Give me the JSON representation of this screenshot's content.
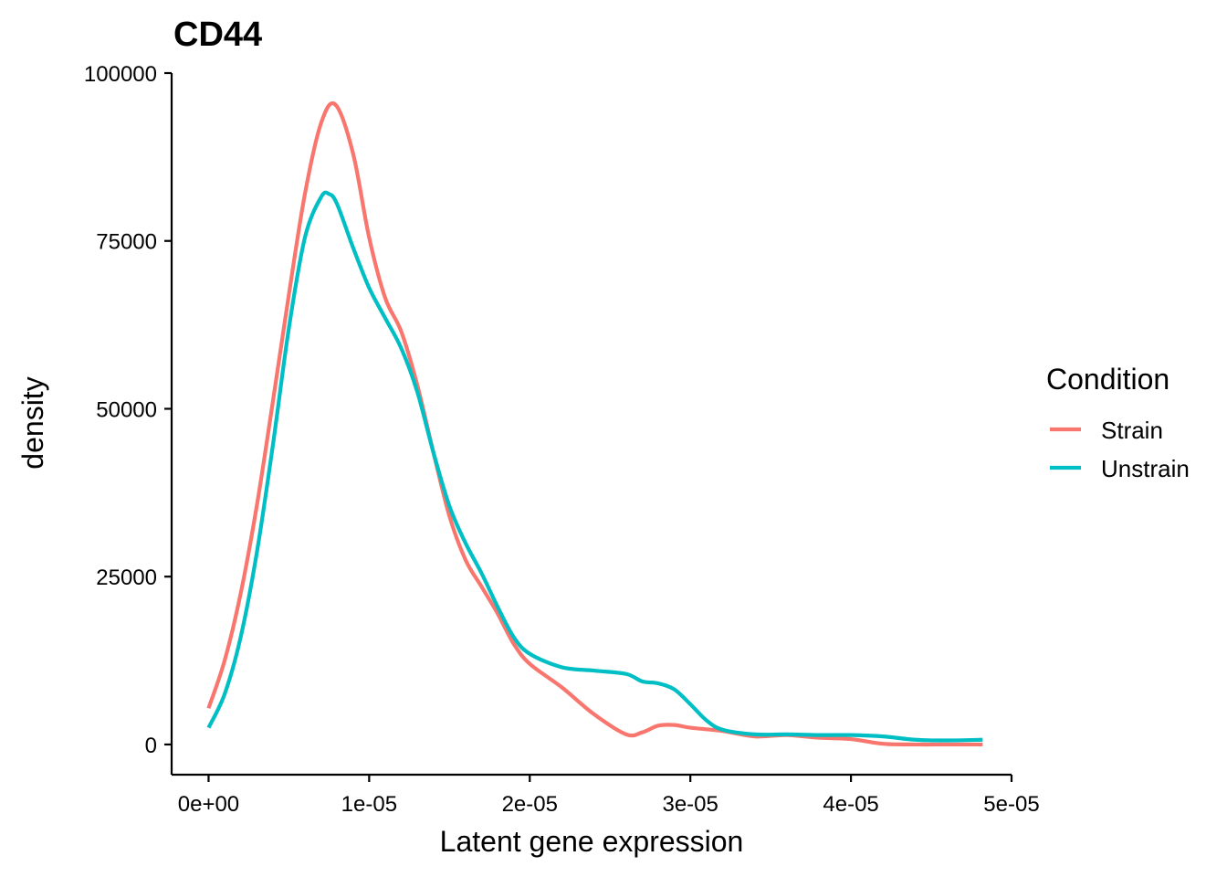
{
  "chart_data": {
    "type": "line",
    "title": "CD44",
    "xlabel": "Latent gene expression",
    "ylabel": "density",
    "xlim": [
      -2.3e-06,
      5e-05
    ],
    "ylim": [
      -4500,
      100000
    ],
    "x_ticks": [
      0,
      1e-05,
      2e-05,
      3e-05,
      4e-05,
      5e-05
    ],
    "x_tick_labels": [
      "0e+00",
      "1e-05",
      "2e-05",
      "3e-05",
      "4e-05",
      "5e-05"
    ],
    "y_ticks": [
      0,
      25000,
      50000,
      75000,
      100000
    ],
    "y_tick_labels": [
      "0",
      "25000",
      "50000",
      "75000",
      "100000"
    ],
    "grid": false,
    "legend": {
      "title": "Condition",
      "position": "right"
    },
    "series": [
      {
        "name": "Strain",
        "color": "#F8766D",
        "points": [
          [
            0.0,
            5400
          ],
          [
            1e-06,
            12500
          ],
          [
            2e-06,
            22500
          ],
          [
            3e-06,
            35500
          ],
          [
            4e-06,
            51000
          ],
          [
            5e-06,
            67000
          ],
          [
            6e-06,
            82000
          ],
          [
            7e-06,
            92500
          ],
          [
            7.9e-06,
            95300
          ],
          [
            9e-06,
            88000
          ],
          [
            1e-05,
            75500
          ],
          [
            1.1e-05,
            66500
          ],
          [
            1.2e-05,
            61500
          ],
          [
            1.3e-05,
            53500
          ],
          [
            1.4e-05,
            43500
          ],
          [
            1.5e-05,
            34000
          ],
          [
            1.6e-05,
            27500
          ],
          [
            1.7e-05,
            23500
          ],
          [
            1.8e-05,
            19500
          ],
          [
            1.9e-05,
            15000
          ],
          [
            2e-05,
            12000
          ],
          [
            2.2e-05,
            8500
          ],
          [
            2.4e-05,
            4500
          ],
          [
            2.6e-05,
            1500
          ],
          [
            2.7e-05,
            1800
          ],
          [
            2.8e-05,
            2800
          ],
          [
            2.9e-05,
            2900
          ],
          [
            3e-05,
            2500
          ],
          [
            3.2e-05,
            2000
          ],
          [
            3.4e-05,
            1200
          ],
          [
            3.6e-05,
            1400
          ],
          [
            3.8e-05,
            1000
          ],
          [
            4e-05,
            800
          ],
          [
            4.2e-05,
            100
          ],
          [
            4.4e-05,
            0
          ],
          [
            4.6e-05,
            0
          ],
          [
            4.82e-05,
            0
          ]
        ]
      },
      {
        "name": "Unstrain",
        "color": "#00BFC4",
        "points": [
          [
            0.0,
            2500
          ],
          [
            1e-06,
            7500
          ],
          [
            2e-06,
            16000
          ],
          [
            3e-06,
            28500
          ],
          [
            4e-06,
            44500
          ],
          [
            5e-06,
            62000
          ],
          [
            6e-06,
            75500
          ],
          [
            7e-06,
            81500
          ],
          [
            7.5e-06,
            82000
          ],
          [
            8e-06,
            80500
          ],
          [
            9e-06,
            74000
          ],
          [
            1e-05,
            68000
          ],
          [
            1.1e-05,
            63500
          ],
          [
            1.2e-05,
            59000
          ],
          [
            1.3e-05,
            52500
          ],
          [
            1.4e-05,
            43500
          ],
          [
            1.5e-05,
            35500
          ],
          [
            1.6e-05,
            30000
          ],
          [
            1.7e-05,
            25500
          ],
          [
            1.8e-05,
            20500
          ],
          [
            1.9e-05,
            16000
          ],
          [
            2e-05,
            13500
          ],
          [
            2.2e-05,
            11500
          ],
          [
            2.4e-05,
            11000
          ],
          [
            2.6e-05,
            10500
          ],
          [
            2.7e-05,
            9400
          ],
          [
            2.8e-05,
            9100
          ],
          [
            2.9e-05,
            8200
          ],
          [
            3e-05,
            6000
          ],
          [
            3.1e-05,
            3600
          ],
          [
            3.2e-05,
            2200
          ],
          [
            3.4e-05,
            1500
          ],
          [
            3.6e-05,
            1500
          ],
          [
            3.8e-05,
            1400
          ],
          [
            4e-05,
            1400
          ],
          [
            4.2e-05,
            1200
          ],
          [
            4.4e-05,
            700
          ],
          [
            4.6e-05,
            600
          ],
          [
            4.82e-05,
            700
          ]
        ]
      }
    ]
  }
}
